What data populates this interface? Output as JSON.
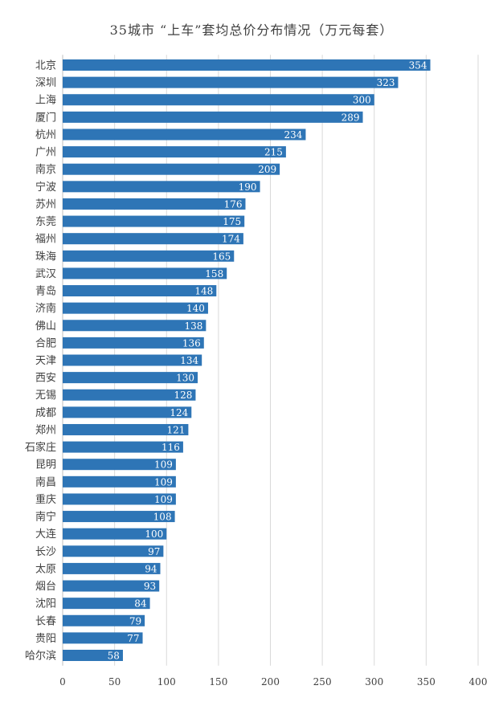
{
  "chart_data": {
    "type": "bar",
    "orientation": "horizontal",
    "title": "35城市 “上车”套均总价分布情况（万元每套）",
    "xlabel": "",
    "ylabel": "",
    "xlim": [
      0,
      400
    ],
    "x_ticks": [
      0,
      50,
      100,
      150,
      200,
      250,
      300,
      350,
      400
    ],
    "grid": "vertical",
    "legend": "none",
    "bar_color": "#2e75b6",
    "data_labels": "inside-end",
    "categories": [
      "北京",
      "深圳",
      "上海",
      "厦门",
      "杭州",
      "广州",
      "南京",
      "宁波",
      "苏州",
      "东莞",
      "福州",
      "珠海",
      "武汉",
      "青岛",
      "济南",
      "佛山",
      "合肥",
      "天津",
      "西安",
      "无锡",
      "成都",
      "郑州",
      "石家庄",
      "昆明",
      "南昌",
      "重庆",
      "南宁",
      "大连",
      "长沙",
      "太原",
      "烟台",
      "沈阳",
      "长春",
      "贵阳",
      "哈尔滨"
    ],
    "values": [
      354,
      323,
      300,
      289,
      234,
      215,
      209,
      190,
      176,
      175,
      174,
      165,
      158,
      148,
      140,
      138,
      136,
      134,
      130,
      128,
      124,
      121,
      116,
      109,
      109,
      109,
      108,
      100,
      97,
      94,
      93,
      84,
      79,
      77,
      58
    ]
  }
}
